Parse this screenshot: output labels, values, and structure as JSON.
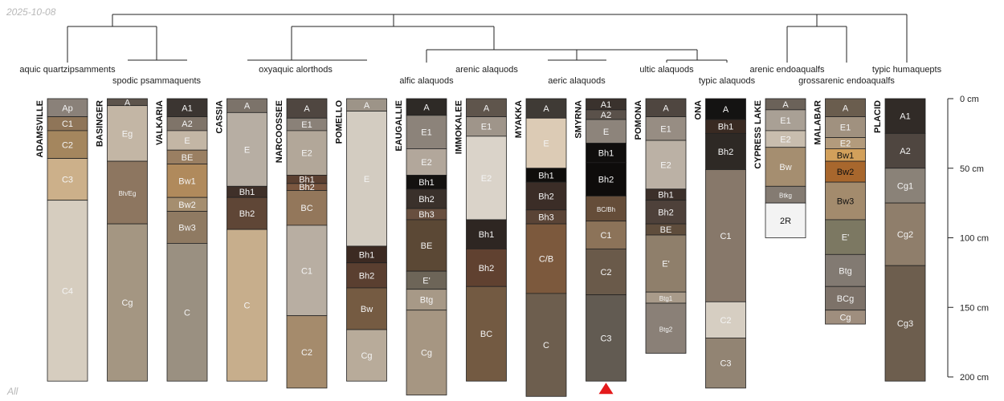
{
  "header": {
    "date": "2025-10-08"
  },
  "footer": {
    "label": "All"
  },
  "chart_data": {
    "type": "soil-profile-sketch",
    "depth_axis": {
      "unit": "cm",
      "max_depth": 200,
      "ticks": [
        {
          "value": 0,
          "label": "0 cm"
        },
        {
          "value": 50,
          "label": "50 cm"
        },
        {
          "value": 100,
          "label": "100 cm"
        },
        {
          "value": 150,
          "label": "150 cm"
        },
        {
          "value": 200,
          "label": "200 cm"
        }
      ]
    },
    "taxa": [
      "aquic quartzipsamments",
      "spodic psammaquents",
      "oxyaquic alorthods",
      "alfic alaquods",
      "arenic alaquods",
      "aeric alaquods",
      "ultic alaquods",
      "typic alaquods",
      "arenic endoaqualfs",
      "grossarenic endoaqualfs",
      "typic humaquepts"
    ],
    "profiles": [
      {
        "name": "ADAMSVILLE",
        "horizons": [
          {
            "name": "Ap",
            "top": 0,
            "bottom": 13,
            "color": "#8a8179"
          },
          {
            "name": "C1",
            "top": 13,
            "bottom": 23,
            "color": "#8f7558"
          },
          {
            "name": "C2",
            "top": 23,
            "bottom": 43,
            "color": "#a4865e"
          },
          {
            "name": "C3",
            "top": 43,
            "bottom": 73,
            "color": "#ccb08a"
          },
          {
            "name": "C4",
            "top": 73,
            "bottom": 203,
            "color": "#d6cdbf"
          }
        ]
      },
      {
        "name": "BASINGER",
        "horizons": [
          {
            "name": "A",
            "top": 0,
            "bottom": 5,
            "color": "#5d544c"
          },
          {
            "name": "Eg",
            "top": 5,
            "bottom": 45,
            "color": "#c3b6a5"
          },
          {
            "name": "Bh/Eg",
            "top": 45,
            "bottom": 90,
            "color": "#8d7660",
            "small": true
          },
          {
            "name": "Cg",
            "top": 90,
            "bottom": 203,
            "color": "#a49682"
          }
        ]
      },
      {
        "name": "VALKARIA",
        "horizons": [
          {
            "name": "A1",
            "top": 0,
            "bottom": 13,
            "color": "#3b3531"
          },
          {
            "name": "A2",
            "top": 13,
            "bottom": 23,
            "color": "#7f7469"
          },
          {
            "name": "E",
            "top": 23,
            "bottom": 37,
            "color": "#c3b6a5"
          },
          {
            "name": "BE",
            "top": 37,
            "bottom": 47,
            "color": "#9a7f62"
          },
          {
            "name": "Bw1",
            "top": 47,
            "bottom": 71,
            "color": "#b08a5c"
          },
          {
            "name": "Bw2",
            "top": 71,
            "bottom": 81,
            "color": "#a58e6f"
          },
          {
            "name": "Bw3",
            "top": 81,
            "bottom": 104,
            "color": "#8f7a62"
          },
          {
            "name": "C",
            "top": 104,
            "bottom": 203,
            "color": "#9a9081"
          }
        ]
      },
      {
        "name": "CASSIA",
        "horizons": [
          {
            "name": "A",
            "top": 0,
            "bottom": 10,
            "color": "#7c736a"
          },
          {
            "name": "E",
            "top": 10,
            "bottom": 63,
            "color": "#b7aea3"
          },
          {
            "name": "Bh1",
            "top": 63,
            "bottom": 71,
            "color": "#3f3029"
          },
          {
            "name": "Bh2",
            "top": 71,
            "bottom": 94,
            "color": "#5f4636"
          },
          {
            "name": "C",
            "top": 94,
            "bottom": 203,
            "color": "#c7ae8c"
          }
        ]
      },
      {
        "name": "NARCOOSSEE",
        "horizons": [
          {
            "name": "A",
            "top": 0,
            "bottom": 14,
            "color": "#4f4640"
          },
          {
            "name": "E1",
            "top": 14,
            "bottom": 23,
            "color": "#8a8178"
          },
          {
            "name": "E2",
            "top": 23,
            "bottom": 55,
            "color": "#b2a799"
          },
          {
            "name": "Bh1",
            "top": 55,
            "bottom": 61,
            "color": "#5b4031"
          },
          {
            "name": "Bh2",
            "top": 61,
            "bottom": 66,
            "color": "#7b5740"
          },
          {
            "name": "BC",
            "top": 66,
            "bottom": 91,
            "color": "#93775b"
          },
          {
            "name": "C1",
            "top": 91,
            "bottom": 156,
            "color": "#b8aea2"
          },
          {
            "name": "C2",
            "top": 156,
            "bottom": 208,
            "color": "#a58b6c"
          }
        ]
      },
      {
        "name": "POMELLO",
        "horizons": [
          {
            "name": "A",
            "top": 0,
            "bottom": 9,
            "color": "#9d9488"
          },
          {
            "name": "E",
            "top": 9,
            "bottom": 106,
            "color": "#d3ccc1"
          },
          {
            "name": "Bh1",
            "top": 106,
            "bottom": 118,
            "color": "#3c2a22"
          },
          {
            "name": "Bh2",
            "top": 118,
            "bottom": 136,
            "color": "#5a3f30"
          },
          {
            "name": "Bw",
            "top": 136,
            "bottom": 166,
            "color": "#755b42"
          },
          {
            "name": "Cg",
            "top": 166,
            "bottom": 203,
            "color": "#b8ab9a"
          }
        ]
      },
      {
        "name": "EAUGALLIE",
        "horizons": [
          {
            "name": "A",
            "top": 0,
            "bottom": 12,
            "color": "#2e2a26"
          },
          {
            "name": "E1",
            "top": 12,
            "bottom": 36,
            "color": "#8c837a"
          },
          {
            "name": "E2",
            "top": 36,
            "bottom": 55,
            "color": "#b2a79b"
          },
          {
            "name": "Bh1",
            "top": 55,
            "bottom": 65,
            "color": "#141210"
          },
          {
            "name": "Bh2",
            "top": 65,
            "bottom": 79,
            "color": "#3a312b"
          },
          {
            "name": "Bh3",
            "top": 79,
            "bottom": 87,
            "color": "#684f3f"
          },
          {
            "name": "BE",
            "top": 87,
            "bottom": 124,
            "color": "#5b4835"
          },
          {
            "name": "E'",
            "top": 124,
            "bottom": 137,
            "color": "#6d6558"
          },
          {
            "name": "Btg",
            "top": 137,
            "bottom": 152,
            "color": "#a79987"
          },
          {
            "name": "Cg",
            "top": 152,
            "bottom": 213,
            "color": "#a69682"
          }
        ]
      },
      {
        "name": "IMMOKALEE",
        "horizons": [
          {
            "name": "A",
            "top": 0,
            "bottom": 13,
            "color": "#5f554c"
          },
          {
            "name": "E1",
            "top": 13,
            "bottom": 27,
            "color": "#9f958a"
          },
          {
            "name": "E2",
            "top": 27,
            "bottom": 87,
            "color": "#dad3c9"
          },
          {
            "name": "Bh1",
            "top": 87,
            "bottom": 108,
            "color": "#2e2622"
          },
          {
            "name": "Bh2",
            "top": 108,
            "bottom": 135,
            "color": "#604130"
          },
          {
            "name": "BC",
            "top": 135,
            "bottom": 203,
            "color": "#735a42"
          }
        ]
      },
      {
        "name": "MYAKKA",
        "horizons": [
          {
            "name": "A",
            "top": 0,
            "bottom": 14,
            "color": "#3f3a35"
          },
          {
            "name": "E",
            "top": 14,
            "bottom": 50,
            "color": "#dccbb5"
          },
          {
            "name": "Bh1",
            "top": 50,
            "bottom": 60,
            "color": "#0f0d0b"
          },
          {
            "name": "Bh2",
            "top": 60,
            "bottom": 80,
            "color": "#3b2d27"
          },
          {
            "name": "Bh3",
            "top": 80,
            "bottom": 90,
            "color": "#5a4436"
          },
          {
            "name": "C/B",
            "top": 90,
            "bottom": 140,
            "color": "#7c593d"
          },
          {
            "name": "C",
            "top": 140,
            "bottom": 214,
            "color": "#6d5e4e"
          }
        ]
      },
      {
        "name": "SMYRNA",
        "horizons": [
          {
            "name": "A1",
            "top": 0,
            "bottom": 8,
            "color": "#3a322d"
          },
          {
            "name": "A2",
            "top": 8,
            "bottom": 15,
            "color": "#5a514a"
          },
          {
            "name": "E",
            "top": 15,
            "bottom": 32,
            "color": "#8d847b"
          },
          {
            "name": "Bh1",
            "top": 32,
            "bottom": 46,
            "color": "#100e0d"
          },
          {
            "name": "Bh2",
            "top": 46,
            "bottom": 70,
            "color": "#0e0c0b"
          },
          {
            "name": "BC/Bh",
            "top": 70,
            "bottom": 88,
            "color": "#654d39",
            "small": true
          },
          {
            "name": "C1",
            "top": 88,
            "bottom": 108,
            "color": "#8c7359"
          },
          {
            "name": "C2",
            "top": 108,
            "bottom": 141,
            "color": "#6a5a4a"
          },
          {
            "name": "C3",
            "top": 141,
            "bottom": 203,
            "color": "#625b52"
          }
        ],
        "truncated": true
      },
      {
        "name": "POMONA",
        "horizons": [
          {
            "name": "A",
            "top": 0,
            "bottom": 13,
            "color": "#4f4640"
          },
          {
            "name": "E1",
            "top": 13,
            "bottom": 30,
            "color": "#978d83"
          },
          {
            "name": "E2",
            "top": 30,
            "bottom": 65,
            "color": "#bbb1a5"
          },
          {
            "name": "Bh1",
            "top": 65,
            "bottom": 73,
            "color": "#3c302a"
          },
          {
            "name": "Bh2",
            "top": 73,
            "bottom": 90,
            "color": "#4e413a"
          },
          {
            "name": "BE",
            "top": 90,
            "bottom": 98,
            "color": "#5f4d3c"
          },
          {
            "name": "E'",
            "top": 98,
            "bottom": 139,
            "color": "#8f7f6b"
          },
          {
            "name": "Btg1",
            "top": 139,
            "bottom": 147,
            "color": "#a99b8a",
            "small": true
          },
          {
            "name": "Btg2",
            "top": 147,
            "bottom": 183,
            "color": "#8a8077",
            "small": true
          }
        ]
      },
      {
        "name": "ONA",
        "horizons": [
          {
            "name": "A",
            "top": 0,
            "bottom": 15,
            "color": "#141312"
          },
          {
            "name": "Bh1",
            "top": 15,
            "bottom": 25,
            "color": "#392a22"
          },
          {
            "name": "Bh2",
            "top": 25,
            "bottom": 51,
            "color": "#2e2925"
          },
          {
            "name": "C1",
            "top": 51,
            "bottom": 146,
            "color": "#87786a"
          },
          {
            "name": "C2",
            "top": 146,
            "bottom": 172,
            "color": "#d6cec2"
          },
          {
            "name": "C3",
            "top": 172,
            "bottom": 208,
            "color": "#928473"
          }
        ]
      },
      {
        "name": "CYPRESS LAKE",
        "horizons": [
          {
            "name": "A",
            "top": 0,
            "bottom": 8,
            "color": "#6b6259"
          },
          {
            "name": "E1",
            "top": 8,
            "bottom": 23,
            "color": "#a9a095"
          },
          {
            "name": "E2",
            "top": 23,
            "bottom": 35,
            "color": "#c8bdae"
          },
          {
            "name": "Bw",
            "top": 35,
            "bottom": 63,
            "color": "#a58e70"
          },
          {
            "name": "Btkg",
            "top": 63,
            "bottom": 75,
            "color": "#847b72",
            "small": true
          },
          {
            "name": "2R",
            "top": 75,
            "bottom": 100,
            "color": "#f3f3f3",
            "dark_text": true
          }
        ]
      },
      {
        "name": "MALABAR",
        "horizons": [
          {
            "name": "A",
            "top": 0,
            "bottom": 13,
            "color": "#6a5d4e"
          },
          {
            "name": "E1",
            "top": 13,
            "bottom": 28,
            "color": "#a0917f"
          },
          {
            "name": "E2",
            "top": 28,
            "bottom": 36,
            "color": "#b39b7c"
          },
          {
            "name": "Bw1",
            "top": 36,
            "bottom": 45,
            "color": "#d2a05b",
            "dark_text": true
          },
          {
            "name": "Bw2",
            "top": 45,
            "bottom": 60,
            "color": "#a8672d",
            "dark_text": true
          },
          {
            "name": "Bw3",
            "top": 60,
            "bottom": 87,
            "color": "#a38b6d",
            "dark_text": true
          },
          {
            "name": "E'",
            "top": 87,
            "bottom": 112,
            "color": "#7c7862"
          },
          {
            "name": "Btg",
            "top": 112,
            "bottom": 135,
            "color": "#827a72"
          },
          {
            "name": "BCg",
            "top": 135,
            "bottom": 152,
            "color": "#7d7269"
          },
          {
            "name": "Cg",
            "top": 152,
            "bottom": 162,
            "color": "#9f8e7e"
          }
        ]
      },
      {
        "name": "PLACID",
        "horizons": [
          {
            "name": "A1",
            "top": 0,
            "bottom": 25,
            "color": "#312b27"
          },
          {
            "name": "A2",
            "top": 25,
            "bottom": 50,
            "color": "#4f4640"
          },
          {
            "name": "Cg1",
            "top": 50,
            "bottom": 75,
            "color": "#8a8278"
          },
          {
            "name": "Cg2",
            "top": 75,
            "bottom": 120,
            "color": "#8f7e6b"
          },
          {
            "name": "Cg3",
            "top": 120,
            "bottom": 203,
            "color": "#6d5e4e"
          }
        ]
      }
    ]
  }
}
